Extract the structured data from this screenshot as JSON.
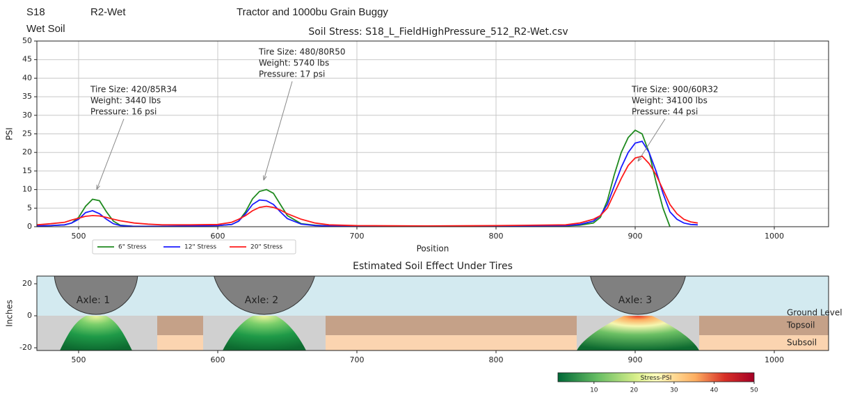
{
  "header": {
    "scene": "S18",
    "condition": "R2-Wet",
    "equipment": "Tractor and 1000bu Grain Buggy",
    "soil": "Wet Soil"
  },
  "chart_data": [
    {
      "type": "line",
      "title": "Soil Stress: S18_L_FieldHighPressure_512_R2-Wet.csv",
      "xlabel": "Position",
      "ylabel": "PSI",
      "xlim": [
        470,
        1039
      ],
      "ylim": [
        0,
        50
      ],
      "xticks": [
        500,
        600,
        700,
        800,
        900,
        1000
      ],
      "yticks": [
        0,
        5,
        10,
        15,
        20,
        25,
        30,
        35,
        40,
        45,
        50
      ],
      "grid": true,
      "x": [
        470,
        480,
        490,
        495,
        500,
        505,
        510,
        515,
        520,
        525,
        530,
        540,
        550,
        560,
        580,
        600,
        610,
        615,
        620,
        625,
        630,
        635,
        640,
        645,
        650,
        660,
        670,
        680,
        700,
        750,
        800,
        850,
        860,
        870,
        875,
        880,
        885,
        890,
        895,
        900,
        905,
        910,
        915,
        920,
        925,
        930,
        935,
        940,
        945
      ],
      "series": [
        {
          "name": "6\" Stress",
          "color": "#1f8a1f",
          "values": [
            0.2,
            0.3,
            0.5,
            1,
            2.5,
            5.5,
            7.4,
            7,
            4,
            1.5,
            0.4,
            0.1,
            0.1,
            0.1,
            0.2,
            0.3,
            0.6,
            1.5,
            4,
            7.5,
            9.5,
            10,
            9,
            6,
            3,
            0.8,
            0.4,
            0.2,
            0.1,
            0.1,
            0.1,
            0.2,
            0.4,
            1,
            2.5,
            7,
            14,
            20,
            24,
            26,
            25,
            20,
            12,
            5,
            0,
            null,
            null,
            null,
            null
          ]
        },
        {
          "name": "12\" Stress",
          "color": "#1a1aff",
          "values": [
            0.2,
            0.3,
            0.5,
            1,
            2,
            3.8,
            4.3,
            3.5,
            2,
            0.8,
            0.3,
            0.1,
            0.1,
            0.1,
            0.2,
            0.3,
            0.6,
            1.5,
            3.5,
            6,
            7.2,
            7,
            6,
            4,
            2.2,
            0.7,
            0.3,
            0.2,
            0.1,
            0.1,
            0.2,
            0.3,
            0.6,
            1.5,
            3,
            6,
            11,
            16,
            20,
            22.5,
            23,
            20,
            15,
            9,
            4,
            2,
            1,
            0.6,
            0.5
          ]
        },
        {
          "name": "20\" Stress",
          "color": "#ff1a1a",
          "values": [
            0.5,
            0.8,
            1.2,
            1.8,
            2.3,
            2.8,
            3,
            2.9,
            2.5,
            2,
            1.6,
            1,
            0.7,
            0.5,
            0.5,
            0.6,
            1.2,
            2,
            3,
            4.3,
            5.2,
            5.5,
            5.2,
            4.5,
            3.5,
            2,
            1,
            0.5,
            0.3,
            0.2,
            0.3,
            0.5,
            1,
            2,
            3,
            5,
            9,
            13,
            16.5,
            18.5,
            19,
            17,
            14,
            10,
            6,
            3.5,
            2,
            1.3,
            1
          ]
        }
      ],
      "legend": "below left",
      "annotations": [
        {
          "lines": [
            "Tire Size: 420/85R34",
            "Weight: 3440 lbs",
            "Pressure: 16 psi"
          ],
          "x": 513,
          "y": 10
        },
        {
          "lines": [
            "Tire Size: 480/80R50",
            "Weight: 5740 lbs",
            "Pressure: 17 psi"
          ],
          "x": 633,
          "y": 12.5
        },
        {
          "lines": [
            "Tire Size: 900/60R32",
            "Weight: 34100 lbs",
            "Pressure: 44 psi"
          ],
          "x": 902,
          "y": 17.6
        }
      ]
    },
    {
      "type": "soil_profile",
      "title": "Estimated Soil Effect Under Tires",
      "ylabel": "Inches",
      "xlim": [
        470,
        1039
      ],
      "ylim": [
        -21.7,
        24.8
      ],
      "xticks": [
        500,
        600,
        700,
        800,
        900,
        1000
      ],
      "yticks": [
        -20,
        0,
        20
      ],
      "axles": [
        {
          "label": "Axle: 1",
          "x": 512.5
        },
        {
          "label": "Axle: 2",
          "x": 633.5
        },
        {
          "label": "Axle: 3",
          "x": 902
        }
      ],
      "layers": [
        "Ground Level",
        "Topsoil",
        "Subsoil"
      ],
      "colorbar": {
        "label": "Stress-PSI",
        "lim": [
          1,
          50
        ],
        "ticks": [
          10,
          20,
          30,
          40,
          50
        ]
      }
    }
  ]
}
